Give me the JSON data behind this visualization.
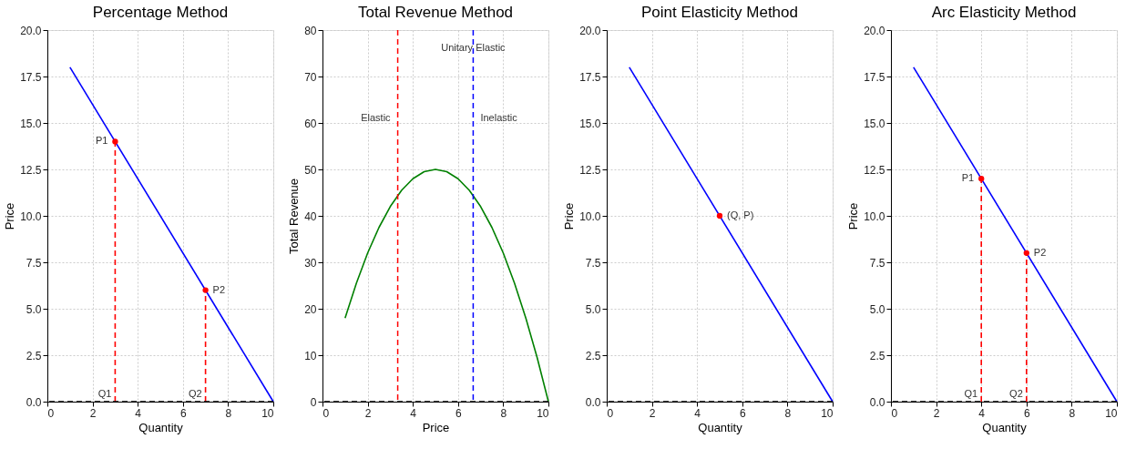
{
  "chart_data": [
    {
      "type": "line",
      "title": "Percentage Method",
      "xlabel": "Quantity",
      "ylabel": "Price",
      "grid": true,
      "xlim": [
        0,
        10
      ],
      "xticks": [
        0,
        2,
        4,
        6,
        8,
        10
      ],
      "ylim": [
        0,
        20
      ],
      "yticks": [
        {
          "value": 0,
          "label": "0.0"
        },
        {
          "value": 2.5,
          "label": "2.5"
        },
        {
          "value": 5,
          "label": "5.0"
        },
        {
          "value": 7.5,
          "label": "7.5"
        },
        {
          "value": 10,
          "label": "10.0"
        },
        {
          "value": 12.5,
          "label": "12.5"
        },
        {
          "value": 15,
          "label": "15.0"
        },
        {
          "value": 17.5,
          "label": "17.5"
        },
        {
          "value": 20,
          "label": "20.0"
        }
      ],
      "series": [
        {
          "color": "#0000ff",
          "x": [
            1,
            10
          ],
          "values": [
            18,
            0
          ]
        },
        {
          "color": "#ff0000",
          "line_style": "dashed",
          "x": [
            3,
            3
          ],
          "values": [
            0,
            14
          ]
        },
        {
          "color": "#ff0000",
          "line_style": "dashed",
          "x": [
            7,
            7
          ],
          "values": [
            0,
            6
          ]
        },
        {
          "type": "scatter",
          "color": "#ff0000",
          "marker": "circle",
          "x": [
            3,
            7
          ],
          "values": [
            14,
            6
          ]
        }
      ],
      "ref_lines": [
        {
          "axis": "y",
          "value": 0,
          "color": "#000000",
          "line_style": "dashed"
        }
      ],
      "annotations": [
        {
          "text": "P1",
          "x": 3,
          "y": 14
        },
        {
          "text": "P2",
          "x": 7,
          "y": 6
        },
        {
          "text": "Q1",
          "x": 3,
          "y": 0
        },
        {
          "text": "Q2",
          "x": 7,
          "y": 0
        }
      ]
    },
    {
      "type": "line",
      "title": "Total Revenue Method",
      "xlabel": "Price",
      "ylabel": "Total Revenue",
      "grid": true,
      "xlim": [
        0,
        10
      ],
      "xticks": [
        0,
        2,
        4,
        6,
        8,
        10
      ],
      "ylim": [
        0,
        80
      ],
      "yticks": [
        0,
        10,
        20,
        30,
        40,
        50,
        60,
        70,
        80
      ],
      "series": [
        {
          "color": "#008000",
          "x": [
            1,
            1.5,
            2,
            2.5,
            3,
            3.5,
            4,
            4.5,
            5,
            5.5,
            6,
            6.5,
            7,
            7.5,
            8,
            8.5,
            9,
            9.5,
            10
          ],
          "values": [
            18,
            25.5,
            32,
            37.5,
            42,
            45.5,
            48,
            49.5,
            50,
            49.5,
            48,
            45.5,
            42,
            37.5,
            32,
            25.5,
            18,
            9.5,
            0
          ]
        }
      ],
      "ref_lines": [
        {
          "axis": "x",
          "value": 3.33,
          "color": "#ff0000",
          "line_style": "dashed"
        },
        {
          "axis": "x",
          "value": 6.67,
          "color": "#0000ff",
          "line_style": "dashed"
        },
        {
          "axis": "y",
          "value": 0,
          "color": "#000000",
          "line_style": "dashed"
        }
      ],
      "annotations": [
        {
          "text": "Elastic",
          "x": 3.33,
          "y": 61
        },
        {
          "text": "Unitary Elastic",
          "x": 6.67,
          "y": 76
        },
        {
          "text": "Inelastic",
          "x": 6.67,
          "y": 61
        }
      ]
    },
    {
      "type": "line",
      "title": "Point Elasticity Method",
      "xlabel": "Quantity",
      "ylabel": "Price",
      "grid": true,
      "xlim": [
        0,
        10
      ],
      "xticks": [
        0,
        2,
        4,
        6,
        8,
        10
      ],
      "ylim": [
        0,
        20
      ],
      "yticks": [
        {
          "value": 0,
          "label": "0.0"
        },
        {
          "value": 2.5,
          "label": "2.5"
        },
        {
          "value": 5,
          "label": "5.0"
        },
        {
          "value": 7.5,
          "label": "7.5"
        },
        {
          "value": 10,
          "label": "10.0"
        },
        {
          "value": 12.5,
          "label": "12.5"
        },
        {
          "value": 15,
          "label": "15.0"
        },
        {
          "value": 17.5,
          "label": "17.5"
        },
        {
          "value": 20,
          "label": "20.0"
        }
      ],
      "series": [
        {
          "color": "#0000ff",
          "x": [
            1,
            10
          ],
          "values": [
            18,
            0
          ]
        },
        {
          "type": "scatter",
          "color": "#ff0000",
          "marker": "circle",
          "x": [
            5
          ],
          "values": [
            10
          ]
        }
      ],
      "ref_lines": [
        {
          "axis": "y",
          "value": 0,
          "color": "#000000",
          "line_style": "dashed"
        }
      ],
      "annotations": [
        {
          "text": "(Q, P)",
          "x": 5,
          "y": 10
        }
      ]
    },
    {
      "type": "line",
      "title": "Arc Elasticity Method",
      "xlabel": "Quantity",
      "ylabel": "Price",
      "grid": true,
      "xlim": [
        0,
        10
      ],
      "xticks": [
        0,
        2,
        4,
        6,
        8,
        10
      ],
      "ylim": [
        0,
        20
      ],
      "yticks": [
        {
          "value": 0,
          "label": "0.0"
        },
        {
          "value": 2.5,
          "label": "2.5"
        },
        {
          "value": 5,
          "label": "5.0"
        },
        {
          "value": 7.5,
          "label": "7.5"
        },
        {
          "value": 10,
          "label": "10.0"
        },
        {
          "value": 12.5,
          "label": "12.5"
        },
        {
          "value": 15,
          "label": "15.0"
        },
        {
          "value": 17.5,
          "label": "17.5"
        },
        {
          "value": 20,
          "label": "20.0"
        }
      ],
      "series": [
        {
          "color": "#0000ff",
          "x": [
            1,
            10
          ],
          "values": [
            18,
            0
          ]
        },
        {
          "color": "#ff0000",
          "line_style": "dashed",
          "x": [
            4,
            4
          ],
          "values": [
            0,
            12
          ]
        },
        {
          "color": "#ff0000",
          "line_style": "dashed",
          "x": [
            6,
            6
          ],
          "values": [
            0,
            8
          ]
        },
        {
          "type": "scatter",
          "color": "#ff0000",
          "marker": "circle",
          "x": [
            4,
            6
          ],
          "values": [
            12,
            8
          ]
        }
      ],
      "ref_lines": [
        {
          "axis": "y",
          "value": 0,
          "color": "#000000",
          "line_style": "dashed"
        }
      ],
      "annotations": [
        {
          "text": "P1",
          "x": 4,
          "y": 12
        },
        {
          "text": "P2",
          "x": 6,
          "y": 8
        },
        {
          "text": "Q1",
          "x": 4,
          "y": 0
        },
        {
          "text": "Q2",
          "x": 6,
          "y": 0
        }
      ]
    }
  ]
}
